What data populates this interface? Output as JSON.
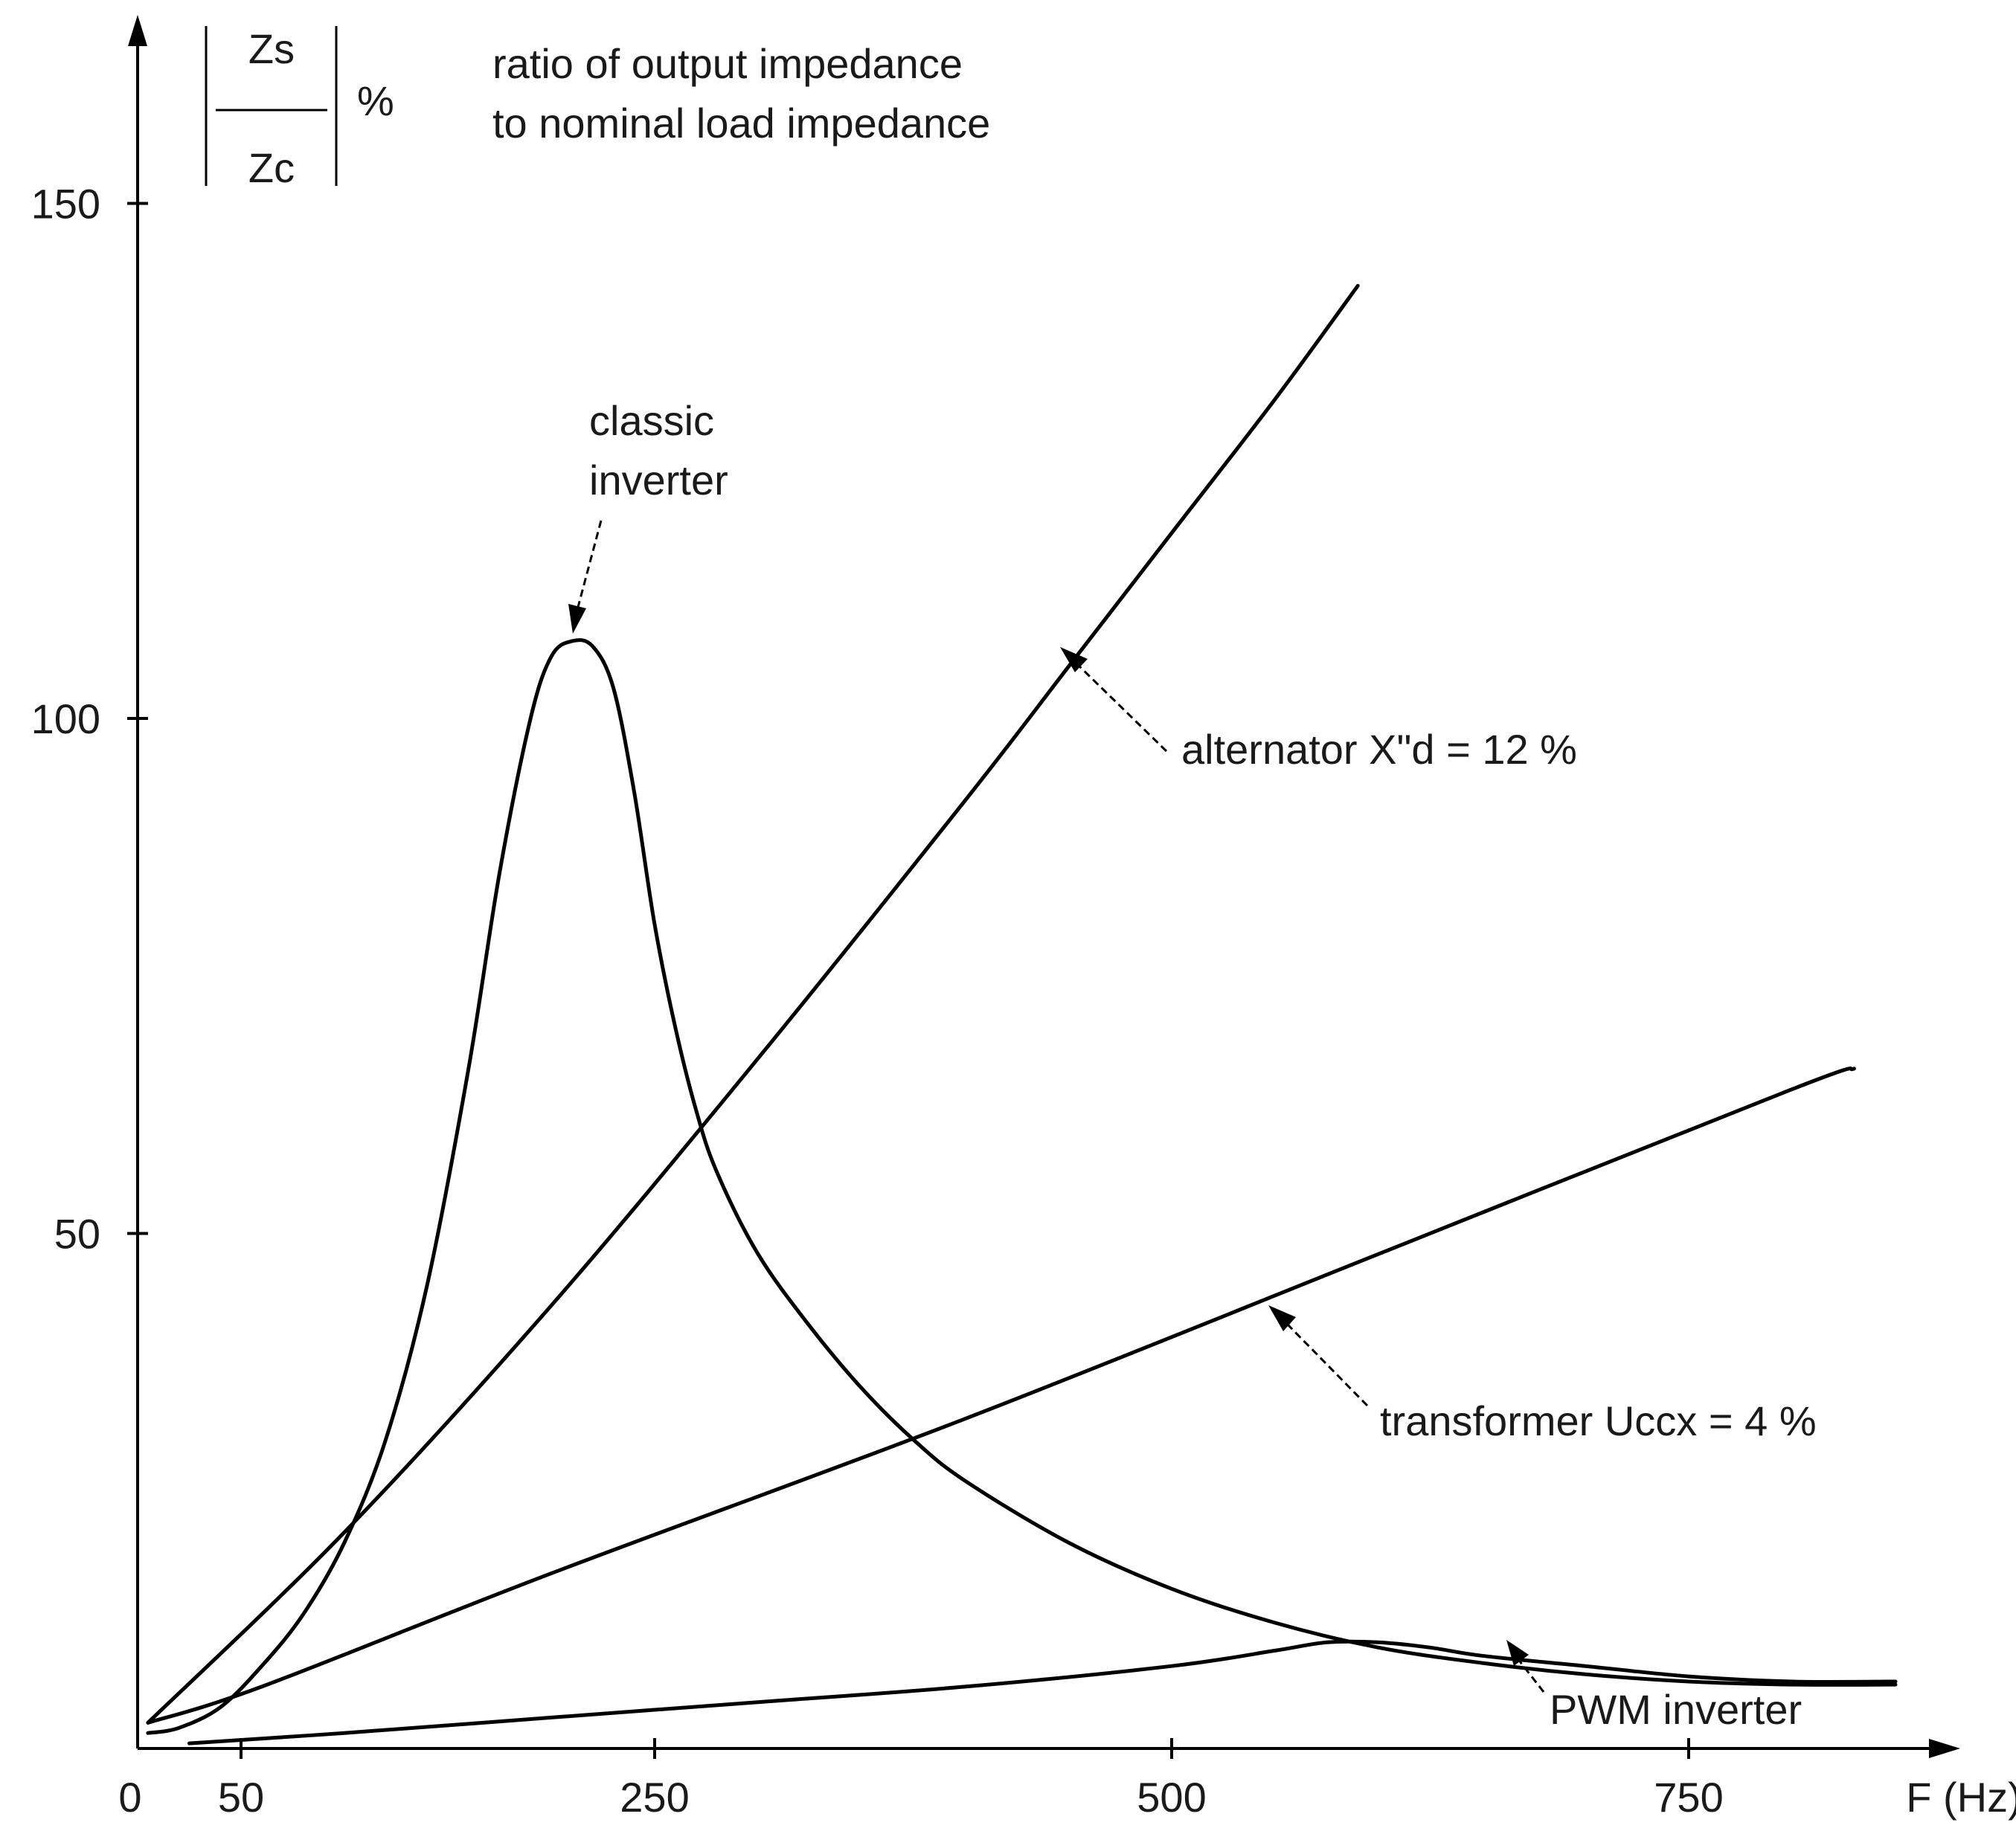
{
  "chart_data": {
    "type": "line",
    "ylabel_numerator": "Zs",
    "ylabel_denominator": "Zc",
    "ylabel_unit": "%",
    "ylabel_description_line1": "ratio of output impedance",
    "ylabel_description_line2": "to nominal load impedance",
    "xlabel": "F (Hz)",
    "x_ticks": [
      {
        "value": 0,
        "label": "0"
      },
      {
        "value": 50,
        "label": "50"
      },
      {
        "value": 250,
        "label": "250"
      },
      {
        "value": 500,
        "label": "500"
      },
      {
        "value": 750,
        "label": "750"
      }
    ],
    "y_ticks": [
      {
        "value": 50,
        "label": "50"
      },
      {
        "value": 100,
        "label": "100"
      },
      {
        "value": 150,
        "label": "150"
      }
    ],
    "xlim": [
      0,
      880
    ],
    "ylim": [
      0,
      170
    ],
    "grid": false,
    "series": [
      {
        "name": "classic inverter",
        "label_line1": "classic",
        "label_line2": "inverter",
        "x": [
          5,
          20,
          40,
          60,
          80,
          100,
          120,
          140,
          160,
          175,
          190,
          200,
          210,
          220,
          230,
          240,
          250,
          260,
          270,
          280,
          300,
          325,
          350,
          375,
          400,
          450,
          500,
          550,
          600,
          650,
          700,
          750,
          800,
          850
        ],
        "y": [
          1.5,
          2,
          4,
          8,
          13,
          20,
          30,
          45,
          66,
          85,
          100,
          106,
          107.5,
          107,
          103,
          93,
          80,
          70,
          62,
          56,
          48,
          41,
          35,
          30,
          26,
          20,
          15.5,
          12.2,
          9.8,
          8.3,
          7.2,
          6.5,
          6.2,
          6.2
        ]
      },
      {
        "name": "alternator X\"d = 12 %",
        "x": [
          5,
          100,
          200,
          300,
          400,
          450,
          500,
          550,
          590
        ],
        "y": [
          2.5,
          21,
          43,
          67,
          92,
          105,
          118,
          131,
          142
        ]
      },
      {
        "name": "transformer Uccx = 4 %",
        "x": [
          5,
          60,
          200,
          400,
          600,
          800,
          830
        ],
        "y": [
          2.5,
          6,
          17,
          32,
          48,
          64,
          66
        ]
      },
      {
        "name": "PWM inverter",
        "x": [
          25,
          100,
          200,
          300,
          400,
          500,
          550,
          575,
          600,
          625,
          650,
          700,
          750,
          800,
          850
        ],
        "y": [
          0.5,
          1.5,
          3,
          4.5,
          6,
          8,
          9.5,
          10.3,
          10.3,
          9.8,
          9,
          8,
          7,
          6.5,
          6.5
        ]
      }
    ],
    "annotations": {
      "classic_line1": "classic",
      "classic_line2": "inverter",
      "alternator": "alternator X\"d = 12 %",
      "transformer": "transformer Uccx = 4 %",
      "pwm": "PWM inverter"
    }
  }
}
